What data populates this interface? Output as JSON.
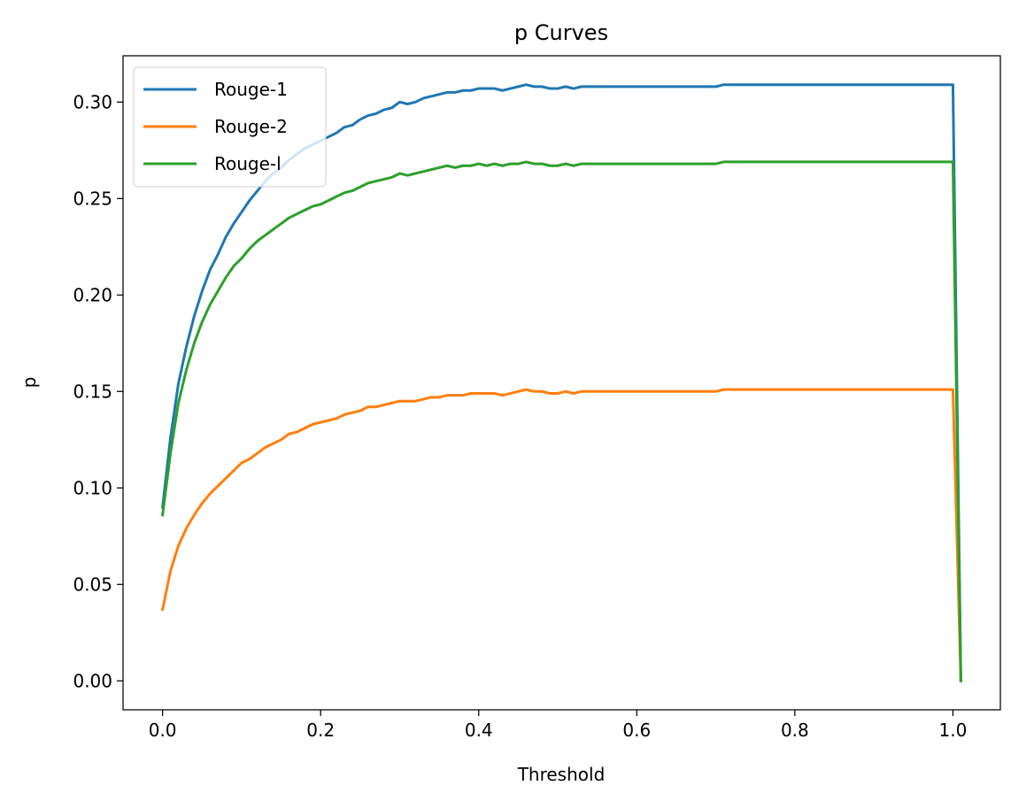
{
  "chart_data": {
    "type": "line",
    "title": "p Curves",
    "xlabel": "Threshold",
    "ylabel": "p",
    "xlim": [
      -0.05,
      1.06
    ],
    "ylim": [
      -0.015,
      0.324
    ],
    "xticks": [
      0.0,
      0.2,
      0.4,
      0.6,
      0.8,
      1.0
    ],
    "xtick_labels": [
      "0.0",
      "0.2",
      "0.4",
      "0.6",
      "0.8",
      "1.0"
    ],
    "yticks": [
      0.0,
      0.05,
      0.1,
      0.15,
      0.2,
      0.25,
      0.3
    ],
    "ytick_labels": [
      "0.00",
      "0.05",
      "0.10",
      "0.15",
      "0.20",
      "0.25",
      "0.30"
    ],
    "grid": false,
    "legend_position": "top-left",
    "series": [
      {
        "name": "Rouge-1",
        "color": "#1f77b4",
        "x": [
          0.0,
          0.01,
          0.02,
          0.03,
          0.04,
          0.05,
          0.06,
          0.07,
          0.08,
          0.09,
          0.1,
          0.11,
          0.12,
          0.13,
          0.14,
          0.15,
          0.16,
          0.17,
          0.18,
          0.19,
          0.2,
          0.21,
          0.22,
          0.23,
          0.24,
          0.25,
          0.26,
          0.27,
          0.28,
          0.29,
          0.3,
          0.31,
          0.32,
          0.33,
          0.34,
          0.35,
          0.36,
          0.37,
          0.38,
          0.39,
          0.4,
          0.41,
          0.42,
          0.43,
          0.44,
          0.45,
          0.46,
          0.47,
          0.48,
          0.49,
          0.5,
          0.51,
          0.52,
          0.53,
          0.54,
          0.55,
          0.6,
          0.65,
          0.7,
          0.71,
          0.8,
          0.9,
          1.0,
          1.01
        ],
        "y": [
          0.09,
          0.126,
          0.154,
          0.173,
          0.189,
          0.202,
          0.213,
          0.221,
          0.23,
          0.237,
          0.243,
          0.249,
          0.254,
          0.259,
          0.263,
          0.266,
          0.27,
          0.273,
          0.276,
          0.278,
          0.28,
          0.282,
          0.284,
          0.287,
          0.288,
          0.291,
          0.293,
          0.294,
          0.296,
          0.297,
          0.3,
          0.299,
          0.3,
          0.302,
          0.303,
          0.304,
          0.305,
          0.305,
          0.306,
          0.306,
          0.307,
          0.307,
          0.307,
          0.306,
          0.307,
          0.308,
          0.309,
          0.308,
          0.308,
          0.307,
          0.307,
          0.308,
          0.307,
          0.308,
          0.308,
          0.308,
          0.308,
          0.308,
          0.308,
          0.309,
          0.309,
          0.309,
          0.309,
          0.0
        ]
      },
      {
        "name": "Rouge-2",
        "color": "#ff7f0e",
        "x": [
          0.0,
          0.01,
          0.02,
          0.03,
          0.04,
          0.05,
          0.06,
          0.07,
          0.08,
          0.09,
          0.1,
          0.11,
          0.12,
          0.13,
          0.14,
          0.15,
          0.16,
          0.17,
          0.18,
          0.19,
          0.2,
          0.21,
          0.22,
          0.23,
          0.24,
          0.25,
          0.26,
          0.27,
          0.28,
          0.29,
          0.3,
          0.31,
          0.32,
          0.33,
          0.34,
          0.35,
          0.36,
          0.37,
          0.38,
          0.39,
          0.4,
          0.41,
          0.42,
          0.43,
          0.44,
          0.45,
          0.46,
          0.47,
          0.48,
          0.49,
          0.5,
          0.51,
          0.52,
          0.53,
          0.54,
          0.55,
          0.6,
          0.65,
          0.7,
          0.71,
          0.8,
          0.9,
          1.0,
          1.01
        ],
        "y": [
          0.037,
          0.057,
          0.07,
          0.079,
          0.086,
          0.092,
          0.097,
          0.101,
          0.105,
          0.109,
          0.113,
          0.115,
          0.118,
          0.121,
          0.123,
          0.125,
          0.128,
          0.129,
          0.131,
          0.133,
          0.134,
          0.135,
          0.136,
          0.138,
          0.139,
          0.14,
          0.142,
          0.142,
          0.143,
          0.144,
          0.145,
          0.145,
          0.145,
          0.146,
          0.147,
          0.147,
          0.148,
          0.148,
          0.148,
          0.149,
          0.149,
          0.149,
          0.149,
          0.148,
          0.149,
          0.15,
          0.151,
          0.15,
          0.15,
          0.149,
          0.149,
          0.15,
          0.149,
          0.15,
          0.15,
          0.15,
          0.15,
          0.15,
          0.15,
          0.151,
          0.151,
          0.151,
          0.151,
          0.0
        ]
      },
      {
        "name": "Rouge-l",
        "color": "#2ca02c",
        "x": [
          0.0,
          0.01,
          0.02,
          0.03,
          0.04,
          0.05,
          0.06,
          0.07,
          0.08,
          0.09,
          0.1,
          0.11,
          0.12,
          0.13,
          0.14,
          0.15,
          0.16,
          0.17,
          0.18,
          0.19,
          0.2,
          0.21,
          0.22,
          0.23,
          0.24,
          0.25,
          0.26,
          0.27,
          0.28,
          0.29,
          0.3,
          0.31,
          0.32,
          0.33,
          0.34,
          0.35,
          0.36,
          0.37,
          0.38,
          0.39,
          0.4,
          0.41,
          0.42,
          0.43,
          0.44,
          0.45,
          0.46,
          0.47,
          0.48,
          0.49,
          0.5,
          0.51,
          0.52,
          0.53,
          0.54,
          0.55,
          0.6,
          0.65,
          0.7,
          0.71,
          0.8,
          0.9,
          1.0,
          1.01
        ],
        "y": [
          0.086,
          0.118,
          0.144,
          0.161,
          0.175,
          0.186,
          0.195,
          0.202,
          0.209,
          0.215,
          0.219,
          0.224,
          0.228,
          0.231,
          0.234,
          0.237,
          0.24,
          0.242,
          0.244,
          0.246,
          0.247,
          0.249,
          0.251,
          0.253,
          0.254,
          0.256,
          0.258,
          0.259,
          0.26,
          0.261,
          0.263,
          0.262,
          0.263,
          0.264,
          0.265,
          0.266,
          0.267,
          0.266,
          0.267,
          0.267,
          0.268,
          0.267,
          0.268,
          0.267,
          0.268,
          0.268,
          0.269,
          0.268,
          0.268,
          0.267,
          0.267,
          0.268,
          0.267,
          0.268,
          0.268,
          0.268,
          0.268,
          0.268,
          0.268,
          0.269,
          0.269,
          0.269,
          0.269,
          0.0
        ]
      }
    ]
  }
}
